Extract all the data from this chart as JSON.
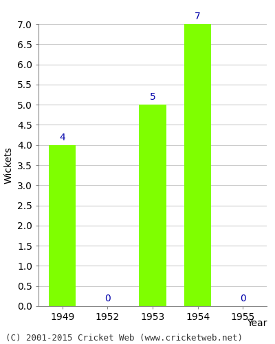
{
  "categories": [
    "1949",
    "1952",
    "1953",
    "1954",
    "1955"
  ],
  "values": [
    4,
    0,
    5,
    7,
    0
  ],
  "bar_color": "#7FFF00",
  "bar_edge_color": "#7FFF00",
  "label_color": "#0000AA",
  "xlabel": "Year",
  "ylabel": "Wickets",
  "ylim": [
    0.0,
    7.0
  ],
  "yticks": [
    0.0,
    0.5,
    1.0,
    1.5,
    2.0,
    2.5,
    3.0,
    3.5,
    4.0,
    4.5,
    5.0,
    5.5,
    6.0,
    6.5,
    7.0
  ],
  "footer": "(C) 2001-2015 Cricket Web (www.cricketweb.net)",
  "background_color": "#ffffff",
  "grid_color": "#cccccc",
  "label_fontsize": 10,
  "axis_fontsize": 10,
  "footer_fontsize": 9,
  "bar_width": 0.6
}
